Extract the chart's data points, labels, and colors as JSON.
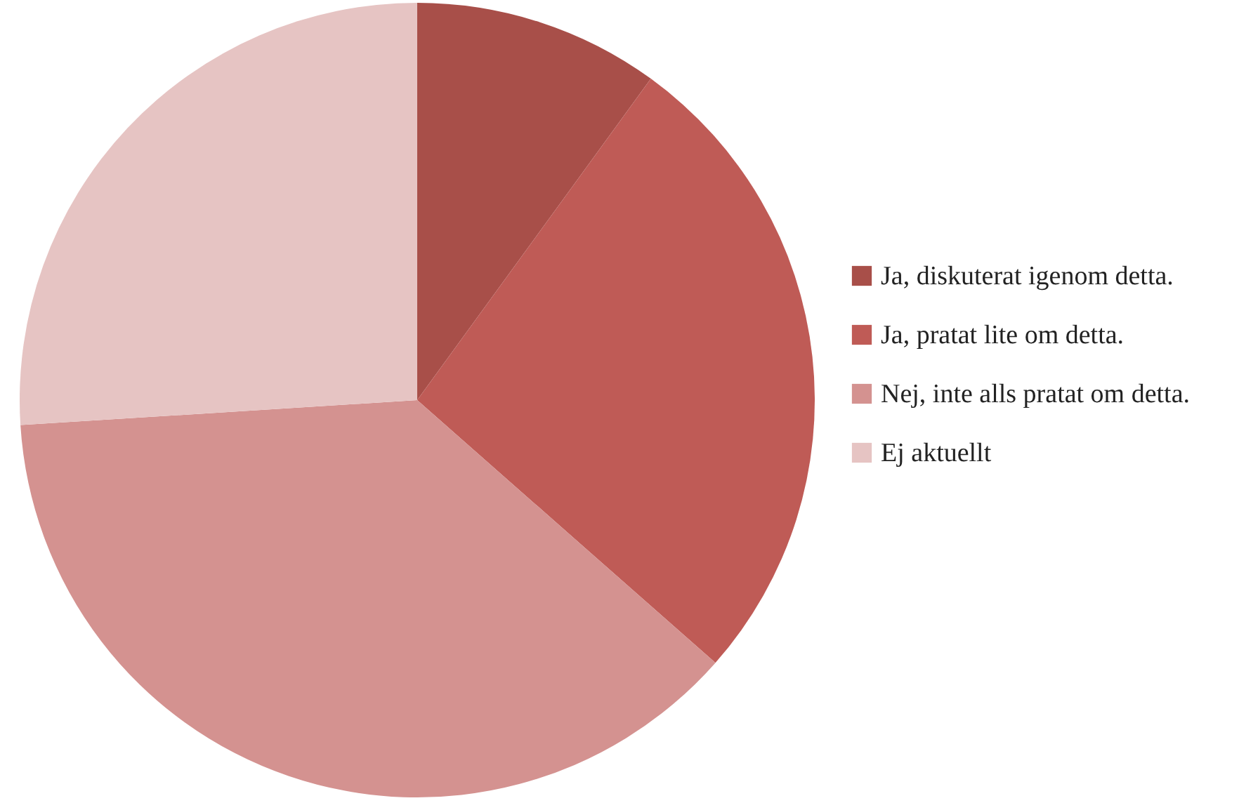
{
  "chart_data": {
    "type": "pie",
    "categories": [
      "Ja, diskuterat igenom detta.",
      "Ja, pratat lite om detta.",
      "Nej, inte alls pratat om detta.",
      "Ej aktuellt"
    ],
    "values": [
      10,
      26.5,
      37.5,
      26
    ],
    "colors": [
      "#a84f49",
      "#bf5b56",
      "#d49290",
      "#e6c4c3"
    ],
    "legend": "right"
  }
}
